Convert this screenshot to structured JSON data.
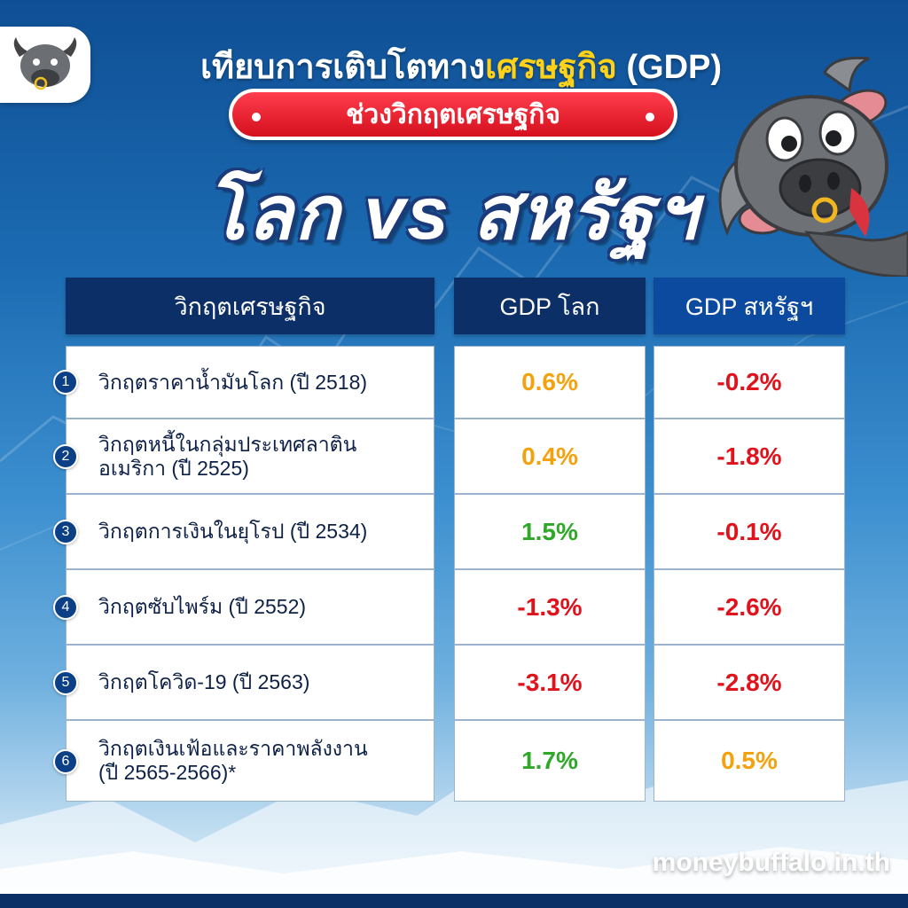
{
  "header": {
    "title_prefix": "เทียบการเติบโตทาง",
    "title_highlight": "เศรษฐกิจ",
    "title_suffix": " (GDP)",
    "subtitle": "ช่วงวิกฤตเศรษฐกิจ",
    "big_title": "โลก vs สหรัฐฯ"
  },
  "colors": {
    "positive": "#2fa82a",
    "moderate": "#f3a20d",
    "negative": "#e0121b",
    "header_dark": "#0b2f66",
    "header_blue": "#0c4aa0"
  },
  "table": {
    "headers": {
      "crisis": "วิกฤตเศรษฐกิจ",
      "world": "GDP โลก",
      "us": "GDP สหรัฐฯ"
    },
    "rows": [
      {
        "num": "1",
        "name_l1": "วิกฤตราคาน้ำมันโลก (ปี 2518)",
        "name_l2": "",
        "world": "0.6%",
        "world_color": "#f3a20d",
        "us": "-0.2%",
        "us_color": "#e0121b"
      },
      {
        "num": "2",
        "name_l1": "วิกฤตหนี้ในกลุ่มประเทศลาติน",
        "name_l2": "อเมริกา (ปี 2525)",
        "world": "0.4%",
        "world_color": "#f3a20d",
        "us": "-1.8%",
        "us_color": "#e0121b"
      },
      {
        "num": "3",
        "name_l1": "วิกฤตการเงินในยุโรป (ปี 2534)",
        "name_l2": "",
        "world": "1.5%",
        "world_color": "#2fa82a",
        "us": "-0.1%",
        "us_color": "#e0121b"
      },
      {
        "num": "4",
        "name_l1": "วิกฤตซับไพร์ม (ปี 2552)",
        "name_l2": "",
        "world": "-1.3%",
        "world_color": "#e0121b",
        "us": "-2.6%",
        "us_color": "#e0121b"
      },
      {
        "num": "5",
        "name_l1": "วิกฤตโควิด-19 (ปี 2563)",
        "name_l2": "",
        "world": "-3.1%",
        "world_color": "#e0121b",
        "us": "-2.8%",
        "us_color": "#e0121b"
      },
      {
        "num": "6",
        "name_l1": "วิกฤตเงินเฟ้อและราคาพลังงาน",
        "name_l2": "(ปี 2565-2566)*",
        "world": "1.7%",
        "world_color": "#2fa82a",
        "us": "0.5%",
        "us_color": "#f3a20d"
      }
    ]
  },
  "footer": {
    "website": "moneybuffalo.in.th"
  },
  "icons": {
    "logo": "buffalo-logo-icon",
    "mascot": "buffalo-mascot-icon"
  }
}
